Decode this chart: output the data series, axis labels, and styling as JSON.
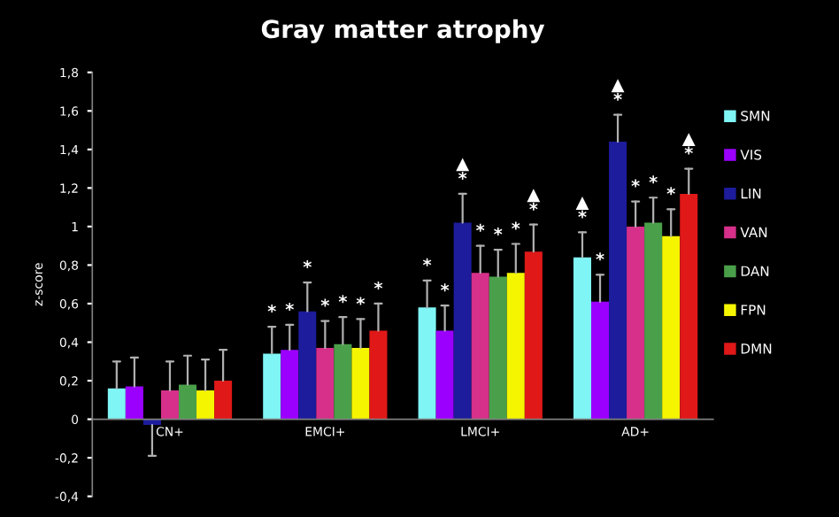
{
  "chart_data": {
    "type": "bar",
    "title": "Gray matter atrophy",
    "ylabel": "z-score",
    "categories": [
      "CN+",
      "EMCI+",
      "LMCI+",
      "AD+"
    ],
    "series": [
      {
        "name": "SMN",
        "color": "#7ff5f5",
        "values": [
          0.16,
          0.34,
          0.58,
          0.84
        ],
        "errors": [
          [
            0.16,
            0.3
          ],
          [
            0.34,
            0.48
          ],
          [
            0.58,
            0.72
          ],
          [
            0.84,
            0.97
          ]
        ],
        "value_labels": [
          null,
          "*",
          "*",
          "▲\n*"
        ]
      },
      {
        "name": "VIS",
        "color": "#9b00ff",
        "values": [
          0.17,
          0.36,
          0.46,
          0.61
        ],
        "errors": [
          [
            0.17,
            0.32
          ],
          [
            0.36,
            0.49
          ],
          [
            0.46,
            0.59
          ],
          [
            0.61,
            0.75
          ]
        ],
        "value_labels": [
          null,
          "*",
          "*",
          "*"
        ]
      },
      {
        "name": "LIN",
        "color": "#1c1c9c",
        "values": [
          -0.03,
          0.56,
          1.02,
          1.44
        ],
        "errors": [
          [
            -0.19,
            -0.03
          ],
          [
            0.56,
            0.71
          ],
          [
            1.02,
            1.17
          ],
          [
            1.44,
            1.58
          ]
        ],
        "value_labels": [
          null,
          "*",
          "▲\n*",
          "▲\n*"
        ]
      },
      {
        "name": "VAN",
        "color": "#d6308a",
        "values": [
          0.15,
          0.37,
          0.76,
          1.0
        ],
        "errors": [
          [
            0.15,
            0.3
          ],
          [
            0.37,
            0.51
          ],
          [
            0.76,
            0.9
          ],
          [
            1.0,
            1.13
          ]
        ],
        "value_labels": [
          null,
          "*",
          "*",
          "*"
        ]
      },
      {
        "name": "DAN",
        "color": "#4aa04a",
        "values": [
          0.18,
          0.39,
          0.74,
          1.02
        ],
        "errors": [
          [
            0.18,
            0.33
          ],
          [
            0.39,
            0.53
          ],
          [
            0.74,
            0.88
          ],
          [
            1.02,
            1.15
          ]
        ],
        "value_labels": [
          null,
          "*",
          "*",
          "*"
        ]
      },
      {
        "name": "FPN",
        "color": "#f5f500",
        "values": [
          0.15,
          0.37,
          0.76,
          0.95
        ],
        "errors": [
          [
            0.15,
            0.31
          ],
          [
            0.37,
            0.52
          ],
          [
            0.76,
            0.91
          ],
          [
            0.95,
            1.09
          ]
        ],
        "value_labels": [
          null,
          "*",
          "*",
          "*"
        ]
      },
      {
        "name": "DMN",
        "color": "#e01818",
        "values": [
          0.2,
          0.46,
          0.87,
          1.17
        ],
        "errors": [
          [
            0.2,
            0.36
          ],
          [
            0.46,
            0.6
          ],
          [
            0.87,
            1.01
          ],
          [
            1.17,
            1.3
          ]
        ],
        "value_labels": [
          null,
          "*",
          "▲\n*",
          "▲\n*"
        ]
      }
    ],
    "ylim": [
      -0.4,
      1.8
    ],
    "yticks": [
      {
        "value": -0.4,
        "label": "-0,4"
      },
      {
        "value": -0.2,
        "label": "-0,2"
      },
      0,
      {
        "value": 0.2,
        "label": "0,2"
      },
      {
        "value": 0.4,
        "label": "0,4"
      },
      {
        "value": 0.6,
        "label": "0,6"
      },
      {
        "value": 0.8,
        "label": "0,8"
      },
      1,
      {
        "value": 1.2,
        "label": "1,2"
      },
      {
        "value": 1.4,
        "label": "1,4"
      },
      {
        "value": 1.6,
        "label": "1,6"
      },
      {
        "value": 1.8,
        "label": "1,8"
      }
    ],
    "legend": "right",
    "grid": false
  }
}
